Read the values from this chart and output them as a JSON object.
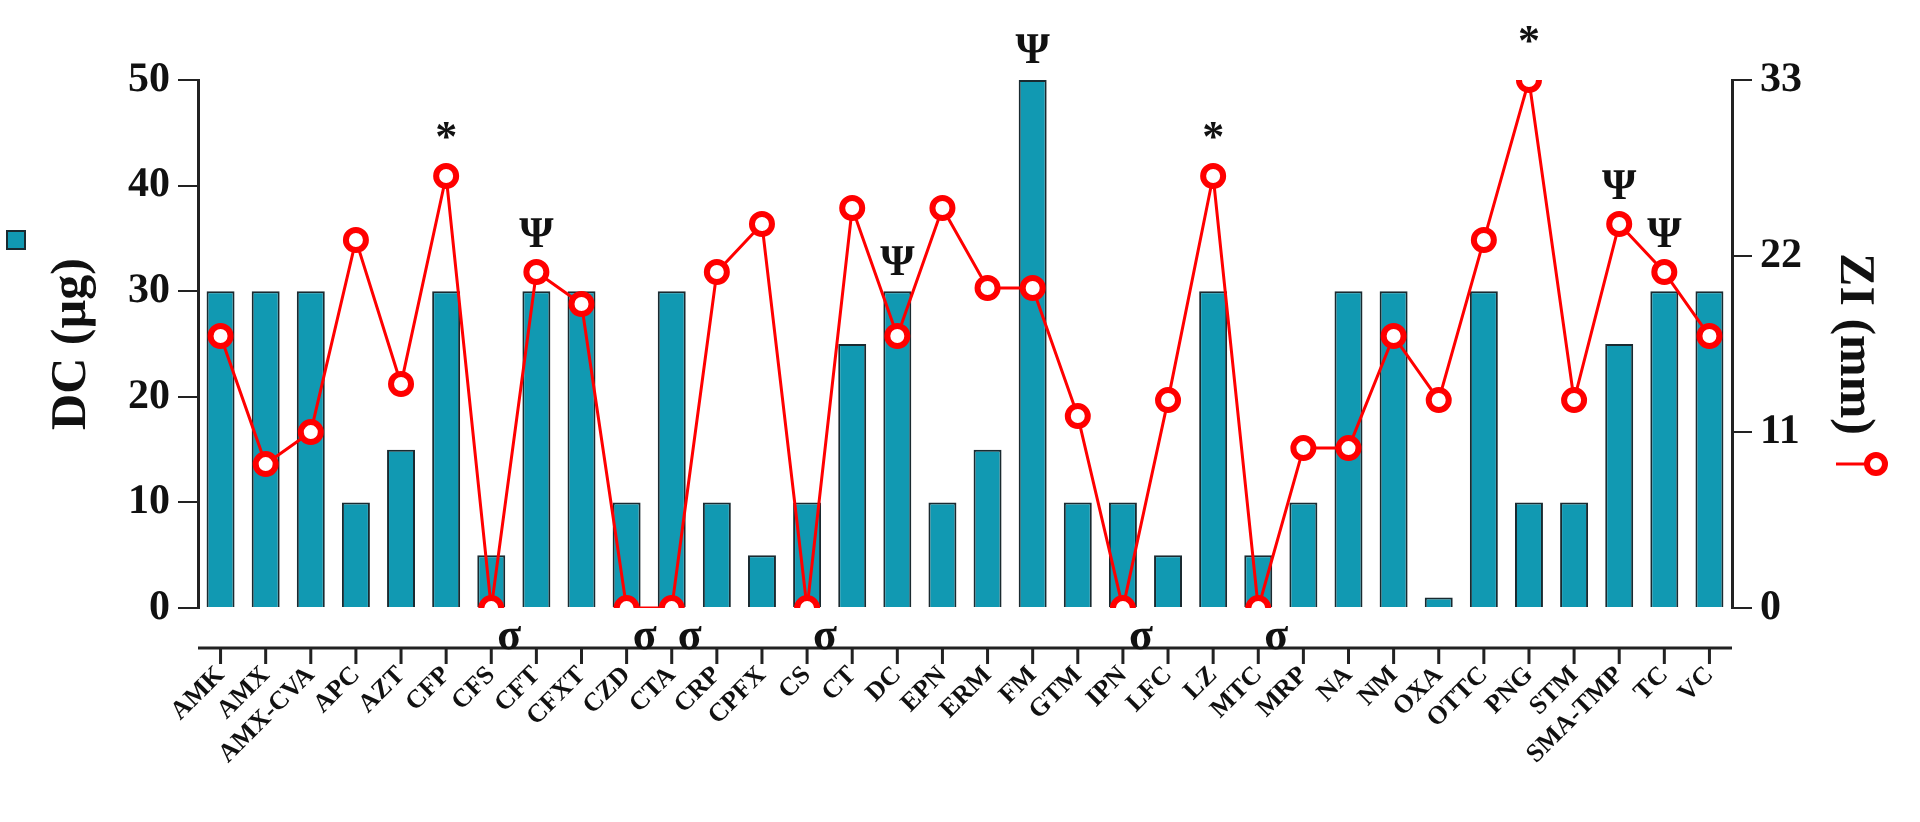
{
  "chart_data": {
    "type": "bar",
    "ylabel": "DC (µg)",
    "y2label": "ZI (mm)",
    "categories": [
      "AMK",
      "AMX",
      "AMX-CVA",
      "APC",
      "AZT",
      "CFP",
      "CFS",
      "CFT",
      "CFXT",
      "CZD",
      "CTA",
      "CRP",
      "CPFX",
      "CS",
      "CT",
      "DC",
      "EPN",
      "ERM",
      "FM",
      "GTM",
      "IPN",
      "LFC",
      "LZ",
      "MTC",
      "MRP",
      "NA",
      "NM",
      "OXA",
      "OTTC",
      "PNG",
      "STM",
      "SMA-TMP",
      "TC",
      "VC"
    ],
    "series": [
      {
        "color": "#1199b2",
        "values": [
          30,
          30,
          30,
          10,
          15,
          30,
          5,
          30,
          30,
          10,
          30,
          10,
          5,
          10,
          25,
          30,
          10,
          15,
          50,
          10,
          10,
          5,
          30,
          5,
          10,
          30,
          30,
          1,
          30,
          10,
          10,
          25,
          30,
          30
        ],
        "value_labels": [
          null,
          null,
          null,
          null,
          null,
          null,
          null,
          null,
          null,
          null,
          null,
          null,
          null,
          null,
          null,
          "Ψ",
          null,
          null,
          "Ψ",
          null,
          null,
          null,
          null,
          null,
          null,
          null,
          null,
          null,
          null,
          null,
          null,
          null,
          null,
          null
        ]
      },
      {
        "type": "line",
        "axis": "y2",
        "color": "#ff0000",
        "marker": "circle",
        "values": [
          17,
          9,
          11,
          23,
          14,
          27,
          0,
          21,
          19,
          0,
          0,
          21,
          24,
          0,
          25,
          17,
          25,
          20,
          20,
          12,
          0,
          13,
          27,
          0,
          10,
          10,
          17,
          13,
          23,
          33,
          13,
          24,
          21,
          17
        ],
        "value_labels": [
          null,
          null,
          null,
          null,
          null,
          "*",
          "σ",
          "Ψ",
          null,
          "σ",
          "σ",
          null,
          null,
          "σ",
          null,
          null,
          null,
          null,
          null,
          null,
          "σ",
          null,
          "*",
          "σ",
          null,
          null,
          null,
          null,
          null,
          "*",
          null,
          "Ψ",
          "Ψ",
          null
        ]
      }
    ],
    "ylim": [
      0,
      50
    ],
    "yticks": [
      0,
      10,
      20,
      30,
      40,
      50
    ],
    "y2lim": [
      0,
      33
    ],
    "y2ticks": [
      0,
      11,
      22,
      33
    ],
    "grid": false,
    "legend": false
  }
}
